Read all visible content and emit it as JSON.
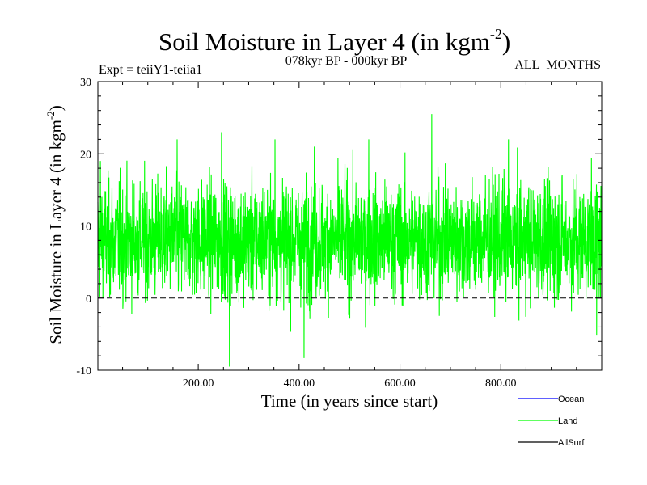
{
  "chart_data": {
    "type": "line",
    "title": "Soil Moisture in Layer 4 (in kgm",
    "title_unit_exponent": "-2",
    "title_suffix": ")",
    "subtitle_left": "Expt = teiiY1-teiia1",
    "subtitle_center": "078kyr BP - 000kyr BP",
    "subtitle_right": "ALL_MONTHS",
    "xlabel": "Time (in years since start)",
    "ylabel": "Soil Moisture in Layer 4 (in kgm",
    "ylabel_unit_exponent": "-2",
    "ylabel_suffix": ")",
    "xlim": [
      1,
      1000
    ],
    "ylim": [
      -10,
      30
    ],
    "x_ticks": [
      200,
      400,
      600,
      800
    ],
    "x_tick_labels": [
      "200.00",
      "400.00",
      "600.00",
      "800.00"
    ],
    "y_ticks": [
      -10,
      0,
      10,
      20,
      30
    ],
    "y_tick_labels": [
      "-10",
      "0",
      "10",
      "20",
      "30"
    ],
    "zero_line": true,
    "grid": false,
    "legend_position": "bottom-right",
    "legend": [
      {
        "name": "Ocean",
        "color": "#0000ff"
      },
      {
        "name": "Land",
        "color": "#00ff00"
      },
      {
        "name": "AllSurf",
        "color": "#000000"
      }
    ],
    "series": [
      {
        "name": "Land",
        "color": "#00ff00",
        "mean": 8,
        "typical_range": [
          0,
          18
        ],
        "notable_points": [
          {
            "x": 6,
            "y": 19
          },
          {
            "x": 158,
            "y": 22
          },
          {
            "x": 246,
            "y": 23
          },
          {
            "x": 262,
            "y": -9.5
          },
          {
            "x": 352,
            "y": 22
          },
          {
            "x": 410,
            "y": -8.3
          },
          {
            "x": 430,
            "y": 21
          },
          {
            "x": 538,
            "y": 22
          },
          {
            "x": 663,
            "y": 25.5
          },
          {
            "x": 815,
            "y": 22
          },
          {
            "x": 990,
            "y": -5.2
          }
        ]
      }
    ]
  }
}
